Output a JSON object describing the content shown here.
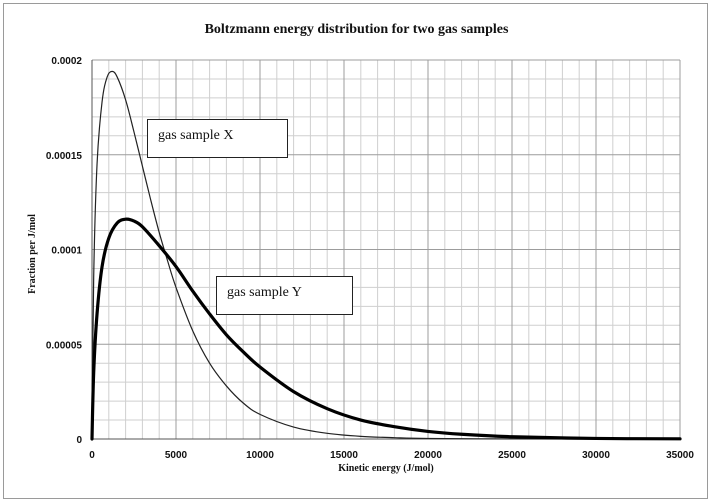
{
  "chart_data": {
    "type": "line",
    "title": "Boltzmann energy distribution for two gas samples",
    "xlabel": "Kinetic energy (J/mol)",
    "ylabel": "Fraction per J/mol",
    "xlim": [
      0,
      35000
    ],
    "ylim": [
      0,
      0.0002
    ],
    "x_ticks": [
      "0",
      "5000",
      "10000",
      "15000",
      "20000",
      "25000",
      "30000",
      "35000"
    ],
    "y_ticks": [
      "0",
      "0.00005",
      "0.0001",
      "0.00015",
      "0.0002"
    ],
    "grid": true,
    "series": [
      {
        "name": "gas sample X",
        "color": "#222222",
        "line": "thin",
        "x": [
          0,
          100,
          300,
          600,
          900,
          1200,
          1500,
          2000,
          2500,
          3000,
          3500,
          4000,
          4500,
          5000,
          6000,
          7000,
          8000,
          9000,
          10000,
          12000,
          14000,
          16000,
          18000,
          20000,
          25000,
          30000,
          35000
        ],
        "y": [
          0,
          8.5e-05,
          0.000145,
          0.000178,
          0.000191,
          0.000194,
          0.000191,
          0.000179,
          0.000162,
          0.000144,
          0.000126,
          0.000109,
          9.4e-05,
          8e-05,
          5.7e-05,
          4e-05,
          2.8e-05,
          1.9e-05,
          1.3e-05,
          6.3e-06,
          3e-06,
          1.4e-06,
          7e-07,
          3e-07,
          5e-08,
          1e-08,
          0
        ]
      },
      {
        "name": "gas sample Y",
        "color": "#000000",
        "line": "thick",
        "x": [
          0,
          100,
          300,
          600,
          1000,
          1500,
          2000,
          2500,
          3000,
          4000,
          5000,
          6000,
          7000,
          8000,
          9000,
          10000,
          12000,
          14000,
          16000,
          18000,
          20000,
          22000,
          25000,
          30000,
          35000
        ],
        "y": [
          0,
          3.5e-05,
          6.6e-05,
          9.1e-05,
          0.000106,
          0.000114,
          0.000116,
          0.000115,
          0.000112,
          0.000102,
          9.1e-05,
          7.8e-05,
          6.6e-05,
          5.5e-05,
          4.6e-05,
          3.8e-05,
          2.5e-05,
          1.6e-05,
          1e-05,
          6.5e-06,
          4e-06,
          2.5e-06,
          1.2e-06,
          3e-07,
          1e-07
        ]
      }
    ]
  }
}
